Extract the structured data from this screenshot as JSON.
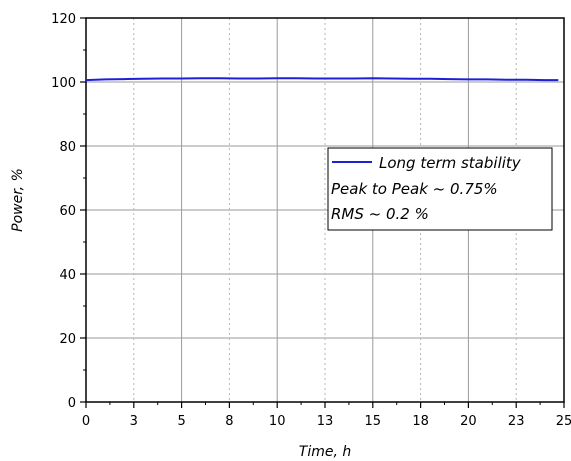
{
  "chart_data": {
    "type": "line",
    "xlabel": "Time, h",
    "ylabel": "Power, %",
    "xlim": [
      0,
      25
    ],
    "ylim": [
      0,
      120
    ],
    "x_ticks": [
      0,
      2.5,
      5,
      7.5,
      10,
      12.5,
      15,
      17.5,
      20,
      22.5,
      25
    ],
    "x_tick_labels": [
      "0",
      "3",
      "5",
      "8",
      "10",
      "13",
      "15",
      "18",
      "20",
      "23",
      "25"
    ],
    "y_ticks": [
      0,
      20,
      40,
      60,
      80,
      100,
      120
    ],
    "y_tick_labels": [
      "0",
      "20",
      "40",
      "60",
      "80",
      "100",
      "120"
    ],
    "grid": true,
    "legend_position": "right",
    "series": [
      {
        "name": "Long term stability",
        "color": "#1f1fd6",
        "x": [
          0,
          1,
          2,
          3,
          4,
          5,
          6,
          7,
          8,
          9,
          10,
          11,
          12,
          13,
          14,
          15,
          16,
          17,
          18,
          19,
          20,
          21,
          22,
          23,
          24,
          24.7
        ],
        "y": [
          100.6,
          100.8,
          100.9,
          101.0,
          101.1,
          101.1,
          101.2,
          101.2,
          101.1,
          101.1,
          101.2,
          101.2,
          101.1,
          101.1,
          101.1,
          101.2,
          101.1,
          101.0,
          101.0,
          100.9,
          100.8,
          100.8,
          100.7,
          100.7,
          100.6,
          100.6
        ]
      }
    ],
    "annotations": [
      "Peak to Peak ~ 0.75%",
      "RMS ~ 0.2 %"
    ]
  }
}
